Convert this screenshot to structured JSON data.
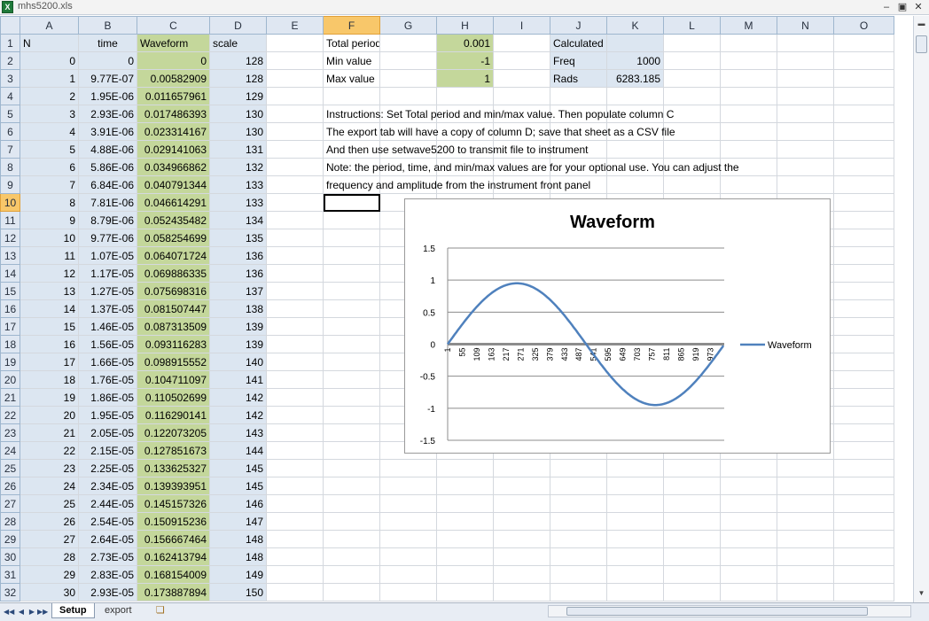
{
  "window": {
    "title": "mhs5200.xls"
  },
  "columns": [
    "A",
    "B",
    "C",
    "D",
    "E",
    "F",
    "G",
    "H",
    "I",
    "J",
    "K",
    "L",
    "M",
    "N",
    "O"
  ],
  "selected_column": "F",
  "selected_row": 10,
  "header_row": {
    "a": "N",
    "b": "time",
    "c": "Waveform",
    "d": "scale"
  },
  "data_rows": [
    {
      "row": 2,
      "n": "0",
      "time": "0",
      "wave": "0",
      "scale": "128"
    },
    {
      "row": 3,
      "n": "1",
      "time": "9.77E-07",
      "wave": "0.00582909",
      "scale": "128"
    },
    {
      "row": 4,
      "n": "2",
      "time": "1.95E-06",
      "wave": "0.011657961",
      "scale": "129"
    },
    {
      "row": 5,
      "n": "3",
      "time": "2.93E-06",
      "wave": "0.017486393",
      "scale": "130"
    },
    {
      "row": 6,
      "n": "4",
      "time": "3.91E-06",
      "wave": "0.023314167",
      "scale": "130"
    },
    {
      "row": 7,
      "n": "5",
      "time": "4.88E-06",
      "wave": "0.029141063",
      "scale": "131"
    },
    {
      "row": 8,
      "n": "6",
      "time": "5.86E-06",
      "wave": "0.034966862",
      "scale": "132"
    },
    {
      "row": 9,
      "n": "7",
      "time": "6.84E-06",
      "wave": "0.040791344",
      "scale": "133"
    },
    {
      "row": 10,
      "n": "8",
      "time": "7.81E-06",
      "wave": "0.046614291",
      "scale": "133"
    },
    {
      "row": 11,
      "n": "9",
      "time": "8.79E-06",
      "wave": "0.052435482",
      "scale": "134"
    },
    {
      "row": 12,
      "n": "10",
      "time": "9.77E-06",
      "wave": "0.058254699",
      "scale": "135"
    },
    {
      "row": 13,
      "n": "11",
      "time": "1.07E-05",
      "wave": "0.064071724",
      "scale": "136"
    },
    {
      "row": 14,
      "n": "12",
      "time": "1.17E-05",
      "wave": "0.069886335",
      "scale": "136"
    },
    {
      "row": 15,
      "n": "13",
      "time": "1.27E-05",
      "wave": "0.075698316",
      "scale": "137"
    },
    {
      "row": 16,
      "n": "14",
      "time": "1.37E-05",
      "wave": "0.081507447",
      "scale": "138"
    },
    {
      "row": 17,
      "n": "15",
      "time": "1.46E-05",
      "wave": "0.087313509",
      "scale": "139"
    },
    {
      "row": 18,
      "n": "16",
      "time": "1.56E-05",
      "wave": "0.093116283",
      "scale": "139"
    },
    {
      "row": 19,
      "n": "17",
      "time": "1.66E-05",
      "wave": "0.098915552",
      "scale": "140"
    },
    {
      "row": 20,
      "n": "18",
      "time": "1.76E-05",
      "wave": "0.104711097",
      "scale": "141"
    },
    {
      "row": 21,
      "n": "19",
      "time": "1.86E-05",
      "wave": "0.110502699",
      "scale": "142"
    },
    {
      "row": 22,
      "n": "20",
      "time": "1.95E-05",
      "wave": "0.116290141",
      "scale": "142"
    },
    {
      "row": 23,
      "n": "21",
      "time": "2.05E-05",
      "wave": "0.122073205",
      "scale": "143"
    },
    {
      "row": 24,
      "n": "22",
      "time": "2.15E-05",
      "wave": "0.127851673",
      "scale": "144"
    },
    {
      "row": 25,
      "n": "23",
      "time": "2.25E-05",
      "wave": "0.133625327",
      "scale": "145"
    },
    {
      "row": 26,
      "n": "24",
      "time": "2.34E-05",
      "wave": "0.139393951",
      "scale": "145"
    },
    {
      "row": 27,
      "n": "25",
      "time": "2.44E-05",
      "wave": "0.145157326",
      "scale": "146"
    },
    {
      "row": 28,
      "n": "26",
      "time": "2.54E-05",
      "wave": "0.150915236",
      "scale": "147"
    },
    {
      "row": 29,
      "n": "27",
      "time": "2.64E-05",
      "wave": "0.156667464",
      "scale": "148"
    },
    {
      "row": 30,
      "n": "28",
      "time": "2.73E-05",
      "wave": "0.162413794",
      "scale": "148"
    },
    {
      "row": 31,
      "n": "29",
      "time": "2.83E-05",
      "wave": "0.168154009",
      "scale": "149"
    },
    {
      "row": 32,
      "n": "30",
      "time": "2.93E-05",
      "wave": "0.173887894",
      "scale": "150"
    }
  ],
  "params": {
    "total_period_label": "Total period",
    "total_period_value": "0.001",
    "min_label": "Min value",
    "min_value": "-1",
    "max_label": "Max value",
    "max_value": "1"
  },
  "calculated": {
    "title": "Calculated",
    "freq_label": "Freq",
    "freq_value": "1000",
    "rads_label": "Rads",
    "rads_value": "6283.185"
  },
  "notes": [
    "Instructions: Set Total period and min/max value. Then populate column C",
    "The export tab will have a copy of column D; save that sheet as a CSV file",
    "And then use setwave5200 to transmit file to instrument",
    "Note: the period, time, and min/max values are for your optional use.  You can adjust the",
    "frequency and amplitude from the instrument front panel"
  ],
  "sheet_tabs": [
    {
      "label": "Setup",
      "active": true
    },
    {
      "label": "export",
      "active": false
    }
  ],
  "chart_data": {
    "type": "line",
    "title": "Waveform",
    "series": [
      {
        "name": "Waveform",
        "formula": "sin(2*pi*(N-1)/1024)",
        "n_points": 1024,
        "color": "#4f81bd"
      }
    ],
    "x_tick_labels": [
      "1",
      "55",
      "109",
      "163",
      "217",
      "271",
      "325",
      "379",
      "433",
      "487",
      "541",
      "595",
      "649",
      "703",
      "757",
      "811",
      "865",
      "919",
      "973"
    ],
    "y_ticks": [
      "1.5",
      "1",
      "0.5",
      "0",
      "-0.5",
      "-1",
      "-1.5"
    ],
    "ylim": [
      -1.5,
      1.5
    ],
    "legend": "right",
    "gridlines": true
  }
}
